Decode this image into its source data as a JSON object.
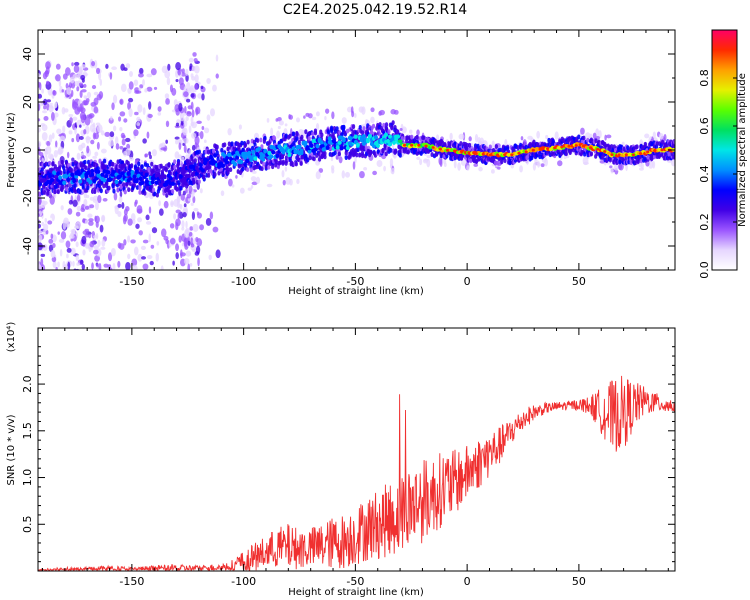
{
  "title": "C2E4.2025.042.19.52.R14",
  "chart_data": [
    {
      "type": "heatmap",
      "xlabel": "Height of straight line (km)",
      "ylabel": "Frequency (Hz)",
      "xlim": [
        -192,
        93
      ],
      "ylim": [
        -50,
        50
      ],
      "x_ticks": [
        -150,
        -100,
        -50,
        0,
        50
      ],
      "y_ticks": [
        -40,
        -20,
        0,
        20,
        40
      ],
      "colorbar": {
        "label": "Normalized spectral amplitude",
        "range": [
          0,
          1
        ],
        "ticks": [
          "0.0",
          "0.2",
          "0.4",
          "0.6",
          "0.8"
        ],
        "colors": [
          "#ffffff",
          "#e6d6ff",
          "#9a55ff",
          "#4000e6",
          "#0000ff",
          "#0090ff",
          "#00e6e6",
          "#00e060",
          "#5aff00",
          "#e6f000",
          "#ffa000",
          "#ff2a00",
          "#ff0066"
        ]
      },
      "ridge": {
        "x": [
          -192,
          -170,
          -150,
          -135,
          -125,
          -115,
          -100,
          -80,
          -60,
          -40,
          -33,
          -28,
          -20,
          -10,
          0,
          10,
          20,
          30,
          40,
          50,
          55,
          60,
          65,
          75,
          85,
          93
        ],
        "freq": [
          -12,
          -11,
          -11,
          -13,
          -9,
          -5,
          -3,
          0,
          3,
          4,
          5,
          2,
          2,
          0,
          -1,
          -2,
          -2,
          0,
          1,
          2,
          1,
          0,
          -2,
          -2,
          0,
          0
        ],
        "peak_amplitude": [
          0.35,
          0.4,
          0.4,
          0.35,
          0.3,
          0.35,
          0.45,
          0.45,
          0.45,
          0.5,
          0.5,
          0.75,
          0.8,
          0.85,
          0.9,
          0.9,
          0.9,
          0.9,
          0.9,
          0.9,
          0.9,
          0.85,
          0.85,
          0.85,
          0.9,
          0.9
        ]
      }
    },
    {
      "type": "line",
      "xlabel": "Height of straight line (km)",
      "ylabel": "SNR (10 * v/v)",
      "y_multiplier": "(x10⁴)",
      "xlim": [
        -192,
        93
      ],
      "ylim": [
        0,
        2.6
      ],
      "x_ticks": [
        -150,
        -100,
        -50,
        0,
        50
      ],
      "y_ticks": [
        "0.5",
        "1.0",
        "1.5",
        "2.0"
      ],
      "series": [
        {
          "color": "#f03030",
          "x": [
            -192,
            -180,
            -170,
            -160,
            -150,
            -140,
            -130,
            -120,
            -110,
            -105,
            -100,
            -95,
            -90,
            -85,
            -80,
            -75,
            -70,
            -65,
            -60,
            -55,
            -50,
            -45,
            -40,
            -35,
            -30,
            -25,
            -20,
            -15,
            -10,
            -5,
            0,
            5,
            10,
            15,
            20,
            25,
            30,
            35,
            40,
            45,
            50,
            55,
            60,
            65,
            70,
            75,
            80,
            85,
            93
          ],
          "y": [
            0.01,
            0.02,
            0.02,
            0.03,
            0.02,
            0.03,
            0.03,
            0.03,
            0.04,
            0.06,
            0.1,
            0.15,
            0.2,
            0.25,
            0.26,
            0.24,
            0.25,
            0.27,
            0.3,
            0.32,
            0.38,
            0.45,
            0.5,
            0.55,
            0.6,
            0.7,
            0.75,
            0.82,
            0.9,
            0.95,
            1.05,
            1.15,
            1.25,
            1.35,
            1.5,
            1.62,
            1.7,
            1.74,
            1.76,
            1.77,
            1.78,
            1.77,
            1.72,
            1.65,
            1.7,
            1.78,
            1.82,
            1.8,
            1.76
          ],
          "noise": [
            0.01,
            0.02,
            0.02,
            0.03,
            0.02,
            0.03,
            0.04,
            0.03,
            0.04,
            0.06,
            0.12,
            0.15,
            0.18,
            0.22,
            0.25,
            0.22,
            0.22,
            0.25,
            0.28,
            0.3,
            0.32,
            0.35,
            0.38,
            0.4,
            0.42,
            0.45,
            0.45,
            0.42,
            0.4,
            0.35,
            0.3,
            0.28,
            0.25,
            0.2,
            0.15,
            0.12,
            0.08,
            0.06,
            0.05,
            0.05,
            0.06,
            0.1,
            0.25,
            0.4,
            0.4,
            0.25,
            0.15,
            0.1,
            0.08
          ]
        }
      ]
    }
  ]
}
